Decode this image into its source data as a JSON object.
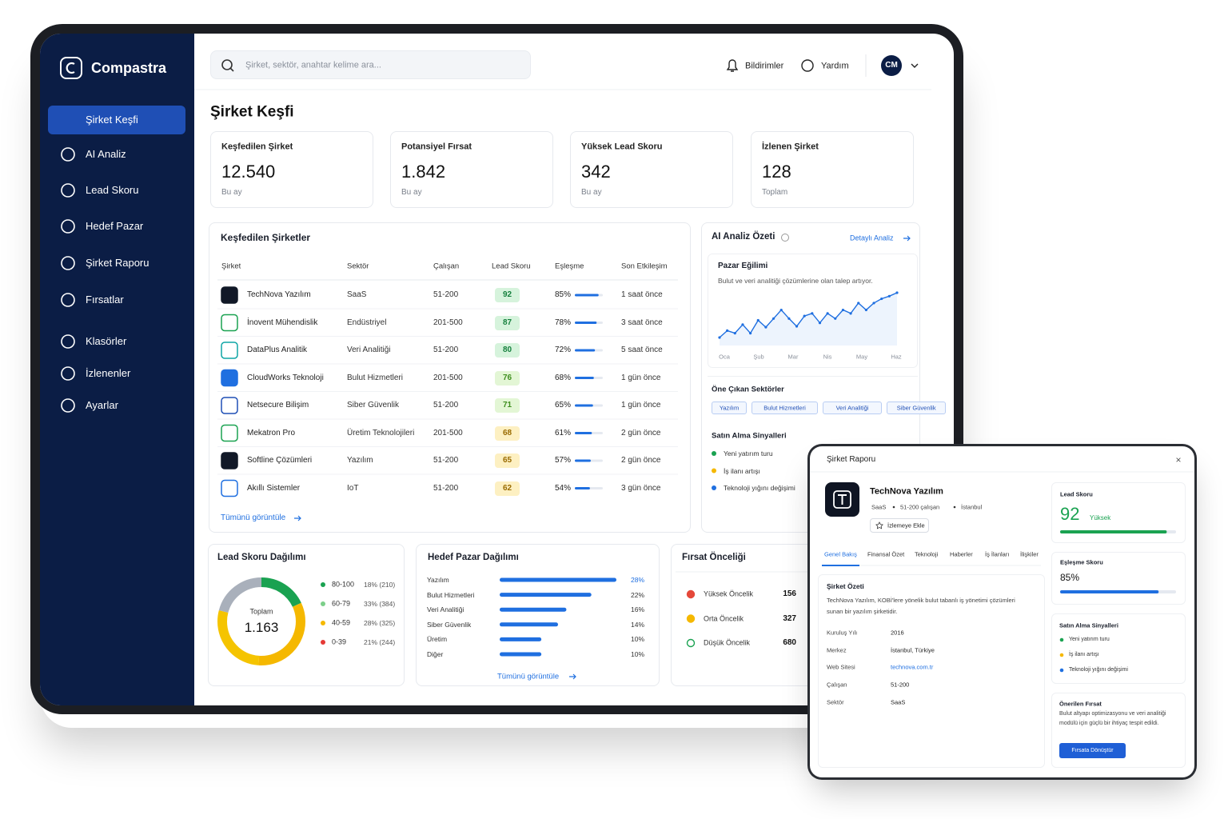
{
  "brand": "Compastra",
  "sidebar": [
    "Şirket Keşfi",
    "AI Analiz",
    "Lead Skoru",
    "Hedef Pazar",
    "Şirket Raporu",
    "Fırsatlar",
    "Klasörler",
    "İzlenenler",
    "Ayarlar"
  ],
  "search_placeholder": "Şirket, sektör, anahtar kelime ara...",
  "topbar": {
    "notifications": "Bildirimler",
    "help": "Yardım",
    "avatar": "CM"
  },
  "page_title": "Şirket Keşfi",
  "stats": [
    {
      "label": "Keşfedilen Şirket",
      "value": "12.540",
      "note": "Bu ay"
    },
    {
      "label": "Potansiyel Fırsat",
      "value": "1.842",
      "note": "Bu ay"
    },
    {
      "label": "Yüksek Lead Skoru",
      "value": "342",
      "note": "Bu ay"
    },
    {
      "label": "İzlenen Şirket",
      "value": "128",
      "note": "Toplam"
    }
  ],
  "companies": {
    "title": "Keşfedilen Şirketler",
    "columns": [
      "Şirket",
      "Sektör",
      "Çalışan",
      "Lead Skoru",
      "Eşleşme",
      "Son Etkileşim"
    ],
    "rows": [
      {
        "name": "TechNova Yazılım",
        "sector": "SaaS",
        "employees": "51-200",
        "score": 92,
        "match": 85,
        "match_label": "85%",
        "last": "1 saat önce"
      },
      {
        "name": "İnovent Mühendislik",
        "sector": "Endüstriyel",
        "employees": "201-500",
        "score": 87,
        "match": 78,
        "match_label": "78%",
        "last": "3 saat önce"
      },
      {
        "name": "DataPlus Analitik",
        "sector": "Veri Analitiği",
        "employees": "51-200",
        "score": 80,
        "match": 72,
        "match_label": "72%",
        "last": "5 saat önce"
      },
      {
        "name": "CloudWorks Teknoloji",
        "sector": "Bulut Hizmetleri",
        "employees": "201-500",
        "score": 76,
        "match": 68,
        "match_label": "68%",
        "last": "1 gün önce"
      },
      {
        "name": "Netsecure Bilişim",
        "sector": "Siber Güvenlik",
        "employees": "51-200",
        "score": 71,
        "match": 65,
        "match_label": "65%",
        "last": "1 gün önce"
      },
      {
        "name": "Mekatron Pro",
        "sector": "Üretim Teknolojileri",
        "employees": "201-500",
        "score": 68,
        "match": 61,
        "match_label": "61%",
        "last": "2 gün önce"
      },
      {
        "name": "Softline Çözümleri",
        "sector": "Yazılım",
        "employees": "51-200",
        "score": 65,
        "match": 57,
        "match_label": "57%",
        "last": "2 gün önce"
      },
      {
        "name": "Akıllı Sistemler",
        "sector": "IoT",
        "employees": "51-200",
        "score": 62,
        "match": 54,
        "match_label": "54%",
        "last": "3 gün önce"
      }
    ],
    "link": "Tümünü görüntüle"
  },
  "ai": {
    "title": "AI Analiz Özeti",
    "link": "Detaylı Analiz",
    "trend": {
      "type": "line",
      "title": "Pazar Eğilimi",
      "subtitle": "Bulut ve veri analitiği çözümlerine olan talep artıyor.",
      "month_labels": [
        "Oca",
        "Şub",
        "Mar",
        "Nis",
        "May",
        "Haz"
      ],
      "values": [
        10,
        18,
        15,
        25,
        15,
        30,
        22,
        32,
        42,
        32,
        23,
        35,
        38,
        27,
        38,
        32,
        42,
        38,
        50,
        42,
        50,
        55,
        58,
        62
      ],
      "color": "#1f6fe0"
    },
    "sectors_title": "Öne Çıkan Sektörler",
    "sectors": [
      "Yazılım",
      "Bulut Hizmetleri",
      "Veri Analitiği",
      "Siber Güvenlik"
    ],
    "signals_title": "Satın Alma Sinyalleri",
    "signals": [
      "Yeni yatırım turu",
      "İş ilanı artışı",
      "Teknoloji yığını değişimi"
    ]
  },
  "lead_distribution": {
    "type": "donut",
    "title": "Lead Skoru Dağılımı",
    "center_label": "Toplam",
    "total": "1.163",
    "segments": [
      {
        "range": "80-100",
        "value": 18,
        "label": "18% (210)",
        "color": "#1aa251"
      },
      {
        "range": "60-79",
        "value": 33,
        "label": "33% (384)",
        "color": "#f5b800"
      },
      {
        "range": "40-59",
        "value": 28,
        "label": "28% (325)",
        "color": "#f5c400"
      },
      {
        "range": "0-39",
        "value": 21,
        "label": "21% (244)",
        "color": "#a9b0bb"
      }
    ],
    "legend_colors": [
      "#1aa251",
      "#7ccf8a",
      "#f5b800",
      "#e53935"
    ]
  },
  "target_market": {
    "type": "bar",
    "title": "Hedef Pazar Dağılımı",
    "categories": [
      "Yazılım",
      "Bulut Hizmetleri",
      "Veri Analitiği",
      "Siber Güvenlik",
      "Üretim",
      "Diğer"
    ],
    "values": [
      28,
      22,
      16,
      14,
      10,
      10
    ],
    "value_labels": [
      "28%",
      "22%",
      "16%",
      "14%",
      "10%",
      "10%"
    ],
    "color": "#1f6fe0",
    "link": "Tümünü görüntüle"
  },
  "opportunity_priority": {
    "title": "Fırsat Önceliği",
    "items": [
      {
        "label": "Yüksek Öncelik",
        "value": "156"
      },
      {
        "label": "Orta Öncelik",
        "value": "327"
      },
      {
        "label": "Düşük Öncelik",
        "value": "680"
      }
    ]
  },
  "report": {
    "title": "Şirket Raporu",
    "company": "TechNova Yazılım",
    "meta": [
      "SaaS",
      "51-200 çalışan",
      "İstanbul"
    ],
    "watch_button": "İzlemeye Ekle",
    "tabs": [
      "Genel Bakış",
      "Finansal Özet",
      "Teknoloji",
      "Haberler",
      "İş İlanları",
      "İlişkiler"
    ],
    "summary_title": "Şirket Özeti",
    "summary": "TechNova Yazılım, KOBİ'lere yönelik bulut tabanlı iş yönetimi çözümleri sunan bir yazılım şirketidir.",
    "facts": [
      {
        "key": "Kuruluş Yılı",
        "value": "2016"
      },
      {
        "key": "Merkez",
        "value": "İstanbul, Türkiye"
      },
      {
        "key": "Web Sitesi",
        "value": "technova.com.tr"
      },
      {
        "key": "Çalışan",
        "value": "51-200"
      },
      {
        "key": "Sektör",
        "value": "SaaS"
      }
    ],
    "lead": {
      "title": "Lead Skoru",
      "value": 92,
      "level": "Yüksek"
    },
    "match": {
      "title": "Eşleşme Skoru",
      "value": 85,
      "label": "85%"
    },
    "signals_title": "Satın Alma Sinyalleri",
    "signals": [
      "Yeni yatırım turu",
      "İş ilanı artışı",
      "Teknoloji yığını değişimi"
    ],
    "opportunity": {
      "title": "Önerilen Fırsat",
      "text": "Bulut altyapı optimizasyonu ve veri analitiği modülü için güçlü bir ihtiyaç tespit edildi.",
      "button": "Fırsata Dönüştür"
    }
  }
}
